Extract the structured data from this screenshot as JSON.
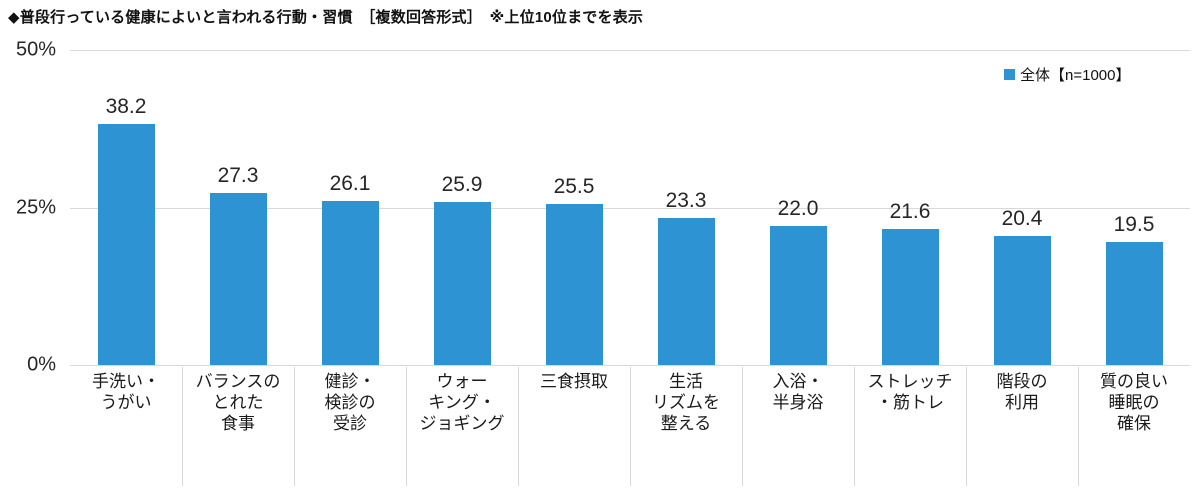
{
  "title": "◆普段行っている健康によいと言われる行動・習慣　［複数回答形式］　※上位10位までを表示",
  "legend": {
    "marker_icon": "legend-square-icon",
    "label": "全体【n=1000】"
  },
  "colors": {
    "bar": "#2e93d2",
    "gridline": "#d9d9d9",
    "divider": "#d9d9d9",
    "text": "#262626",
    "title_text": "#111111"
  },
  "chart_data": {
    "type": "bar",
    "title": "◆普段行っている健康によいと言われる行動・習慣　［複数回答形式］　※上位10位までを表示",
    "categories": [
      "手洗い・うがい",
      "バランスのとれた食事",
      "健診・検診の受診",
      "ウォーキング・ジョギング",
      "三食摂取",
      "生活リズムを整える",
      "入浴・半身浴",
      "ストレッチ・筋トレ",
      "階段の利用",
      "質の良い睡眠の確保"
    ],
    "category_lines": [
      [
        "手洗い・",
        "うがい"
      ],
      [
        "バランスの",
        "とれた",
        "食事"
      ],
      [
        "健診・",
        "検診の",
        "受診"
      ],
      [
        "ウォー",
        "キング・",
        "ジョギング"
      ],
      [
        "三食摂取"
      ],
      [
        "生活",
        "リズムを",
        "整える"
      ],
      [
        "入浴・",
        "半身浴"
      ],
      [
        "ストレッチ",
        "・筋トレ"
      ],
      [
        "階段の",
        "利用"
      ],
      [
        "質の良い",
        "睡眠の",
        "確保"
      ]
    ],
    "series": [
      {
        "name": "全体【n=1000】",
        "values": [
          38.2,
          27.3,
          26.1,
          25.9,
          25.5,
          23.3,
          22.0,
          21.6,
          20.4,
          19.5
        ]
      }
    ],
    "values": [
      38.2,
      27.3,
      26.1,
      25.9,
      25.5,
      23.3,
      22.0,
      21.6,
      20.4,
      19.5
    ],
    "value_labels": [
      "38.2",
      "27.3",
      "26.1",
      "25.9",
      "25.5",
      "23.3",
      "22.0",
      "21.6",
      "20.4",
      "19.5"
    ],
    "xlabel": "",
    "ylabel": "",
    "ylim": [
      0,
      50
    ],
    "yticks": [
      {
        "label": "0%",
        "value": 0
      },
      {
        "label": "25%",
        "value": 25
      },
      {
        "label": "50%",
        "value": 50
      }
    ],
    "grid": "horizontal",
    "legend_position": "top-right",
    "legend_entries": [
      "全体【n=1000】"
    ]
  }
}
